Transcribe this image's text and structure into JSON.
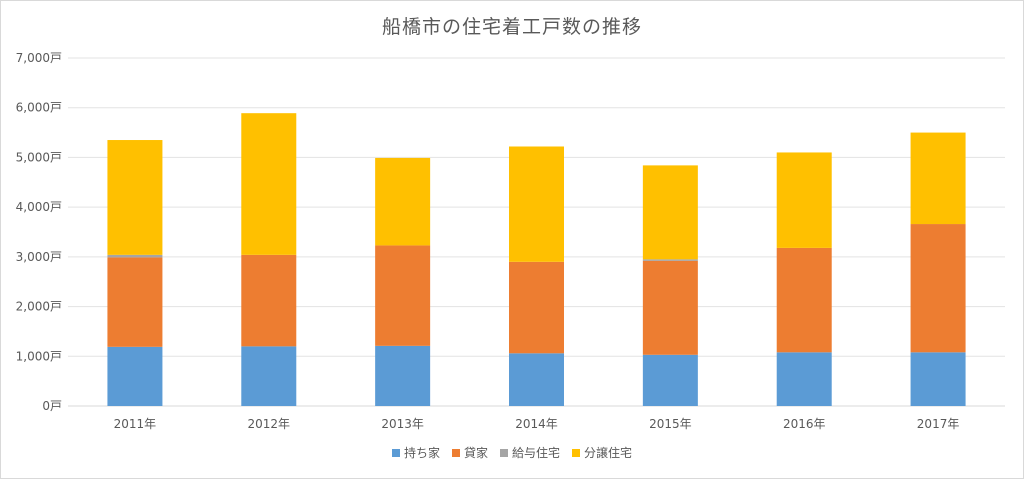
{
  "chart_data": {
    "type": "bar",
    "stacked": true,
    "title": "船橋市の住宅着工戸数の推移",
    "categories": [
      "2011年",
      "2012年",
      "2013年",
      "2014年",
      "2015年",
      "2016年",
      "2017年"
    ],
    "series": [
      {
        "name": "持ち家",
        "color": "#5B9BD5",
        "values": [
          1190,
          1200,
          1210,
          1060,
          1030,
          1080,
          1080
        ]
      },
      {
        "name": "貸家",
        "color": "#ED7D31",
        "values": [
          1800,
          1840,
          2020,
          1840,
          1890,
          2100,
          2580
        ]
      },
      {
        "name": "給与住宅",
        "color": "#A5A5A5",
        "values": [
          50,
          0,
          0,
          0,
          30,
          0,
          0
        ]
      },
      {
        "name": "分譲住宅",
        "color": "#FFC000",
        "values": [
          2310,
          2850,
          1760,
          2320,
          1890,
          1920,
          1840
        ]
      }
    ],
    "ylim": [
      0,
      7000
    ],
    "y_ticks": [
      0,
      1000,
      2000,
      3000,
      4000,
      5000,
      6000,
      7000
    ],
    "y_tick_labels": [
      "0戸",
      "1,000戸",
      "2,000戸",
      "3,000戸",
      "4,000戸",
      "5,000戸",
      "6,000戸",
      "7,000戸"
    ],
    "grid": true,
    "legend_position": "bottom"
  }
}
